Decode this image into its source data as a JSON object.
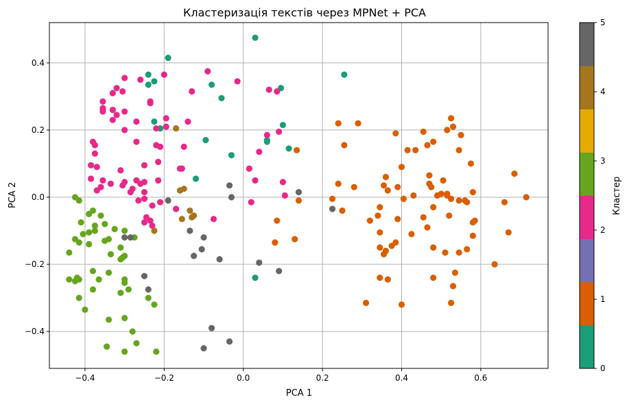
{
  "chart_data": {
    "type": "scatter",
    "title": "Кластеризація текстів через MPNet + PCA",
    "xlabel": "PCA 1",
    "ylabel": "PCA 2",
    "xlim": [
      -0.49,
      0.77
    ],
    "ylim": [
      -0.51,
      0.52
    ],
    "xticks": [
      -0.4,
      -0.2,
      0.0,
      0.2,
      0.4,
      0.6
    ],
    "xtick_labels": [
      "−0.4",
      "−0.2",
      "0.0",
      "0.2",
      "0.4",
      "0.6"
    ],
    "yticks": [
      -0.4,
      -0.2,
      0.0,
      0.2,
      0.4
    ],
    "ytick_labels": [
      "−0.4",
      "−0.2",
      "0.0",
      "0.2",
      "0.4"
    ],
    "grid": true,
    "colorbar": {
      "label": "Кластер",
      "range": [
        0,
        5
      ],
      "ticks": [
        0,
        1,
        2,
        3,
        4,
        5
      ],
      "tick_labels": [
        "0",
        "1",
        "2",
        "3",
        "4",
        "5"
      ],
      "colors": [
        "#1b9e77",
        "#d95f02",
        "#7570b3",
        "#e7298a",
        "#66a61e",
        "#e6ab02",
        "#a6761d",
        "#666666"
      ]
    },
    "cluster_colors": {
      "0": "#1b9e77",
      "1": "#d95f02",
      "2": "#e7298a",
      "3": "#66a61e",
      "4": "#a6761d",
      "5": "#666666"
    },
    "series": [
      {
        "cluster": 0,
        "points": [
          [
            0.03,
            0.475
          ],
          [
            -0.19,
            0.415
          ],
          [
            0.255,
            0.365
          ],
          [
            -0.24,
            0.365
          ],
          [
            -0.225,
            0.345
          ],
          [
            -0.24,
            0.335
          ],
          [
            -0.08,
            0.335
          ],
          [
            0.095,
            0.325
          ],
          [
            -0.055,
            0.295
          ],
          [
            -0.33,
            0.26
          ],
          [
            -0.225,
            0.225
          ],
          [
            -0.21,
            0.205
          ],
          [
            0.1,
            0.215
          ],
          [
            0.06,
            0.17
          ],
          [
            0.06,
            0.165
          ],
          [
            -0.095,
            0.17
          ],
          [
            0.115,
            0.145
          ],
          [
            -0.03,
            0.125
          ],
          [
            -0.12,
            0.055
          ],
          [
            0.03,
            -0.24
          ]
        ]
      },
      {
        "cluster": 1,
        "points": [
          [
            0.525,
            0.235
          ],
          [
            0.24,
            0.22
          ],
          [
            0.29,
            0.22
          ],
          [
            0.53,
            0.21
          ],
          [
            0.515,
            0.2
          ],
          [
            0.455,
            0.195
          ],
          [
            0.385,
            0.19
          ],
          [
            0.55,
            0.185
          ],
          [
            0.48,
            0.165
          ],
          [
            0.465,
            0.155
          ],
          [
            0.255,
            0.155
          ],
          [
            0.435,
            0.14
          ],
          [
            0.545,
            0.14
          ],
          [
            0.415,
            0.14
          ],
          [
            0.135,
            0.14
          ],
          [
            0.575,
            0.1
          ],
          [
            0.4,
            0.09
          ],
          [
            0.685,
            0.07
          ],
          [
            0.47,
            0.065
          ],
          [
            0.36,
            0.06
          ],
          [
            0.505,
            0.05
          ],
          [
            0.24,
            0.04
          ],
          [
            0.47,
            0.04
          ],
          [
            0.355,
            0.035
          ],
          [
            0.475,
            0.03
          ],
          [
            0.39,
            0.03
          ],
          [
            0.28,
            0.03
          ],
          [
            0.365,
            0.02
          ],
          [
            0.5,
            0.01
          ],
          [
            0.515,
            0.01
          ],
          [
            0.58,
            0.015
          ],
          [
            0.49,
            0.005
          ],
          [
            0.43,
            0.005
          ],
          [
            0.405,
            -0.005
          ],
          [
            0.515,
            0.005
          ],
          [
            0.525,
            -0.005
          ],
          [
            0.545,
            -0.01
          ],
          [
            0.565,
            -0.015
          ],
          [
            0.56,
            -0.01
          ],
          [
            0.66,
            -0.015
          ],
          [
            0.715,
            0.0
          ],
          [
            0.14,
            -0.01
          ],
          [
            0.225,
            -0.005
          ],
          [
            0.345,
            -0.03
          ],
          [
            0.48,
            -0.03
          ],
          [
            0.25,
            -0.04
          ],
          [
            0.52,
            -0.055
          ],
          [
            0.34,
            -0.055
          ],
          [
            0.455,
            -0.06
          ],
          [
            0.39,
            -0.065
          ],
          [
            0.585,
            -0.07
          ],
          [
            0.32,
            -0.07
          ],
          [
            0.58,
            -0.075
          ],
          [
            0.085,
            -0.07
          ],
          [
            0.465,
            -0.09
          ],
          [
            0.345,
            -0.105
          ],
          [
            0.425,
            -0.11
          ],
          [
            0.67,
            -0.105
          ],
          [
            0.58,
            -0.115
          ],
          [
            0.385,
            -0.135
          ],
          [
            0.08,
            -0.135
          ],
          [
            0.13,
            -0.125
          ],
          [
            0.48,
            -0.15
          ],
          [
            0.345,
            -0.15
          ],
          [
            0.565,
            -0.155
          ],
          [
            0.375,
            -0.145
          ],
          [
            0.36,
            -0.16
          ],
          [
            0.51,
            -0.165
          ],
          [
            0.545,
            -0.165
          ],
          [
            0.355,
            -0.17
          ],
          [
            0.635,
            -0.2
          ],
          [
            0.535,
            -0.225
          ],
          [
            0.345,
            -0.24
          ],
          [
            0.365,
            -0.245
          ],
          [
            0.48,
            -0.24
          ],
          [
            0.53,
            -0.265
          ],
          [
            0.31,
            -0.315
          ],
          [
            0.4,
            -0.32
          ],
          [
            0.525,
            -0.315
          ]
        ]
      },
      {
        "cluster": 2,
        "points": [
          [
            -0.09,
            0.375
          ],
          [
            -0.3,
            0.355
          ],
          [
            -0.26,
            0.35
          ],
          [
            -0.2,
            0.365
          ],
          [
            -0.015,
            0.345
          ],
          [
            0.065,
            0.32
          ],
          [
            0.085,
            0.315
          ],
          [
            -0.32,
            0.325
          ],
          [
            -0.33,
            0.31
          ],
          [
            -0.305,
            0.315
          ],
          [
            -0.13,
            0.315
          ],
          [
            -0.355,
            0.285
          ],
          [
            -0.235,
            0.28
          ],
          [
            -0.235,
            0.285
          ],
          [
            -0.355,
            0.265
          ],
          [
            -0.355,
            0.26
          ],
          [
            -0.33,
            0.26
          ],
          [
            -0.355,
            0.255
          ],
          [
            -0.3,
            0.255
          ],
          [
            -0.32,
            0.245
          ],
          [
            -0.33,
            0.23
          ],
          [
            -0.27,
            0.225
          ],
          [
            -0.14,
            0.225
          ],
          [
            -0.195,
            0.235
          ],
          [
            -0.195,
            0.21
          ],
          [
            -0.22,
            0.205
          ],
          [
            -0.3,
            0.2
          ],
          [
            0.09,
            0.195
          ],
          [
            0.06,
            0.185
          ],
          [
            -0.38,
            0.165
          ],
          [
            -0.375,
            0.155
          ],
          [
            -0.27,
            0.165
          ],
          [
            -0.22,
            0.155
          ],
          [
            -0.21,
            0.15
          ],
          [
            -0.15,
            0.15
          ],
          [
            -0.375,
            0.13
          ],
          [
            0.04,
            0.135
          ],
          [
            -0.385,
            0.095
          ],
          [
            -0.37,
            0.09
          ],
          [
            -0.25,
            0.095
          ],
          [
            -0.215,
            0.105
          ],
          [
            -0.16,
            0.085
          ],
          [
            -0.155,
            0.085
          ],
          [
            -0.31,
            0.08
          ],
          [
            0.015,
            0.085
          ],
          [
            -0.385,
            0.055
          ],
          [
            -0.355,
            0.05
          ],
          [
            -0.27,
            0.05
          ],
          [
            -0.3,
            0.045
          ],
          [
            -0.335,
            0.04
          ],
          [
            -0.25,
            0.045
          ],
          [
            -0.26,
            0.04
          ],
          [
            -0.215,
            0.05
          ],
          [
            0.03,
            0.05
          ],
          [
            0.1,
            0.045
          ],
          [
            -0.36,
            0.03
          ],
          [
            -0.37,
            0.02
          ],
          [
            -0.305,
            0.035
          ],
          [
            -0.28,
            0.025
          ],
          [
            -0.285,
            0.015
          ],
          [
            -0.25,
            0.015
          ],
          [
            0.105,
            0.005
          ],
          [
            -0.265,
            -0.01
          ],
          [
            -0.25,
            -0.005
          ],
          [
            -0.21,
            -0.015
          ],
          [
            0.02,
            -0.015
          ],
          [
            -0.23,
            -0.025
          ],
          [
            -0.17,
            -0.035
          ],
          [
            -0.125,
            -0.055
          ],
          [
            -0.075,
            -0.065
          ],
          [
            -0.245,
            -0.06
          ],
          [
            -0.235,
            -0.07
          ],
          [
            -0.25,
            -0.075
          ],
          [
            -0.23,
            -0.085
          ]
        ]
      },
      {
        "cluster": 3,
        "points": [
          [
            -0.425,
            0.0
          ],
          [
            -0.415,
            -0.01
          ],
          [
            -0.38,
            -0.04
          ],
          [
            -0.39,
            -0.05
          ],
          [
            -0.36,
            -0.055
          ],
          [
            -0.41,
            -0.075
          ],
          [
            -0.35,
            -0.08
          ],
          [
            -0.375,
            -0.085
          ],
          [
            -0.325,
            -0.095
          ],
          [
            -0.375,
            -0.1
          ],
          [
            -0.3,
            -0.1
          ],
          [
            -0.39,
            -0.105
          ],
          [
            -0.405,
            -0.11
          ],
          [
            -0.275,
            -0.12
          ],
          [
            -0.425,
            -0.125
          ],
          [
            -0.34,
            -0.125
          ],
          [
            -0.415,
            -0.135
          ],
          [
            -0.39,
            -0.14
          ],
          [
            -0.35,
            -0.13
          ],
          [
            -0.31,
            -0.15
          ],
          [
            -0.44,
            -0.165
          ],
          [
            -0.335,
            -0.17
          ],
          [
            -0.3,
            -0.175
          ],
          [
            -0.31,
            -0.185
          ],
          [
            -0.305,
            -0.18
          ],
          [
            -0.38,
            -0.22
          ],
          [
            -0.34,
            -0.225
          ],
          [
            -0.365,
            -0.245
          ],
          [
            -0.44,
            -0.245
          ],
          [
            -0.42,
            -0.24
          ],
          [
            -0.415,
            -0.245
          ],
          [
            -0.425,
            -0.25
          ],
          [
            -0.3,
            -0.245
          ],
          [
            -0.3,
            -0.255
          ],
          [
            -0.29,
            -0.275
          ],
          [
            -0.38,
            -0.275
          ],
          [
            -0.31,
            -0.285
          ],
          [
            -0.24,
            -0.3
          ],
          [
            -0.415,
            -0.3
          ],
          [
            -0.225,
            -0.32
          ],
          [
            -0.4,
            -0.335
          ],
          [
            -0.3,
            -0.36
          ],
          [
            -0.34,
            -0.365
          ],
          [
            -0.28,
            -0.4
          ],
          [
            -0.27,
            -0.435
          ],
          [
            -0.345,
            -0.445
          ],
          [
            -0.3,
            -0.46
          ],
          [
            -0.22,
            -0.46
          ]
        ]
      },
      {
        "cluster": 4,
        "points": [
          [
            -0.17,
            0.205
          ],
          [
            -0.15,
            0.025
          ],
          [
            -0.16,
            0.02
          ],
          [
            -0.135,
            -0.04
          ],
          [
            -0.125,
            -0.055
          ],
          [
            -0.13,
            -0.06
          ],
          [
            -0.155,
            -0.065
          ],
          [
            -0.225,
            -0.1
          ]
        ]
      },
      {
        "cluster": 5,
        "points": [
          [
            -0.035,
            0.035
          ],
          [
            0.14,
            0.015
          ],
          [
            -0.19,
            -0.01
          ],
          [
            -0.03,
            0.0
          ],
          [
            0.225,
            -0.035
          ],
          [
            -0.285,
            -0.12
          ],
          [
            -0.3,
            -0.12
          ],
          [
            -0.135,
            -0.1
          ],
          [
            -0.1,
            -0.12
          ],
          [
            -0.105,
            -0.155
          ],
          [
            -0.125,
            -0.175
          ],
          [
            -0.06,
            -0.185
          ],
          [
            0.04,
            -0.195
          ],
          [
            0.09,
            -0.22
          ],
          [
            -0.25,
            -0.235
          ],
          [
            -0.24,
            -0.275
          ],
          [
            -0.08,
            -0.39
          ],
          [
            -0.035,
            -0.43
          ],
          [
            -0.1,
            -0.45
          ]
        ]
      }
    ]
  }
}
